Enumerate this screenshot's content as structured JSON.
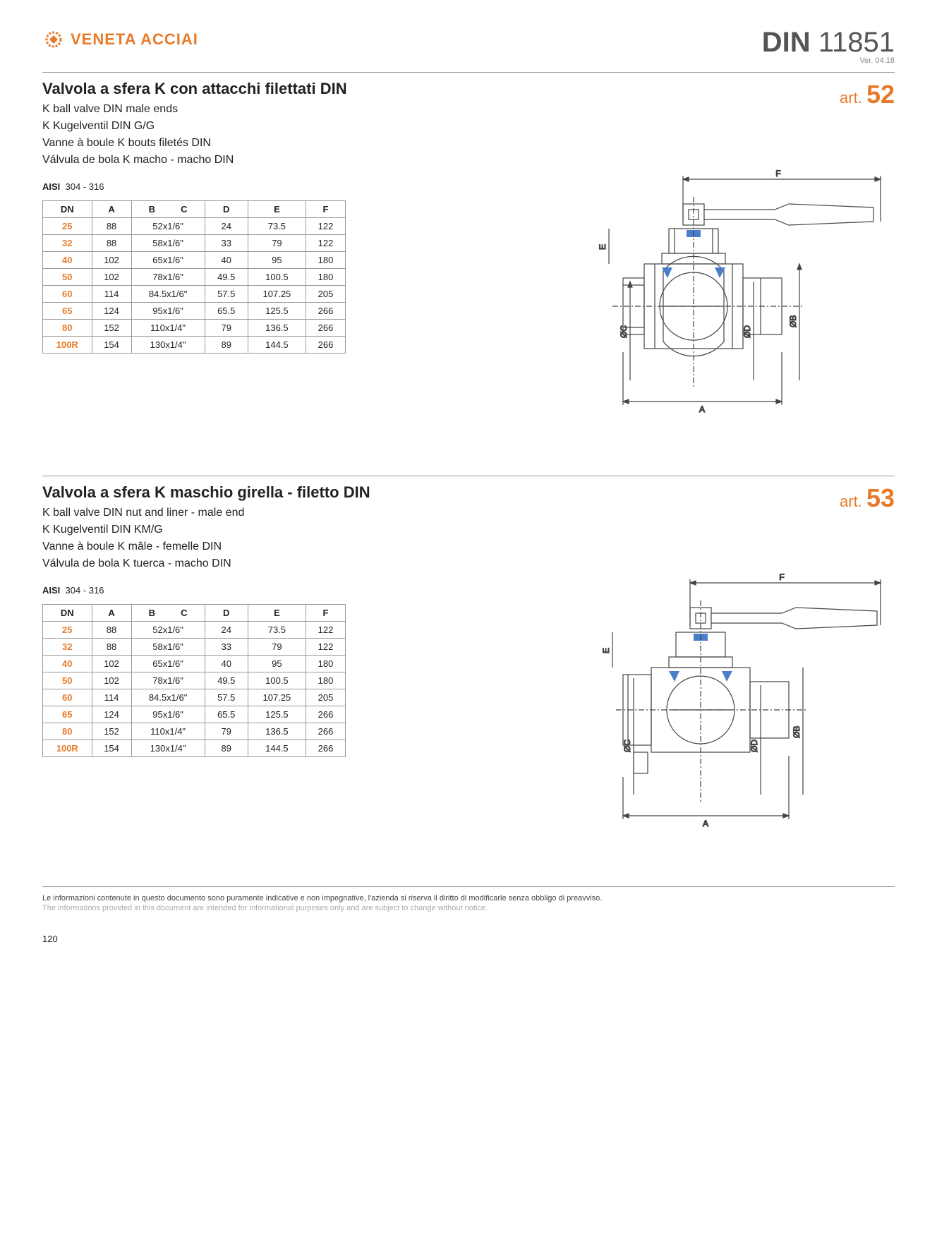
{
  "brand": "VENETA ACCIAI",
  "din": {
    "label_bold": "DIN",
    "number": "11851",
    "version": "Ver. 04.18"
  },
  "section1": {
    "art_prefix": "art.",
    "art_num": "52",
    "title": "Valvola a sfera K con attacchi filettati DIN",
    "subs": [
      "K ball valve DIN male ends",
      "K  Kugelventil DIN G/G",
      "Vanne à boule K bouts filetés DIN",
      "Válvula de bola K macho - macho DIN"
    ],
    "aisi_label": "AISI",
    "aisi_val": "304 - 316",
    "headers": [
      "DN",
      "A",
      "B          C",
      "D",
      "E",
      "F"
    ],
    "rows": [
      [
        "25",
        "88",
        "52x1/6\"",
        "24",
        "73.5",
        "122"
      ],
      [
        "32",
        "88",
        "58x1/6\"",
        "33",
        "79",
        "122"
      ],
      [
        "40",
        "102",
        "65x1/6\"",
        "40",
        "95",
        "180"
      ],
      [
        "50",
        "102",
        "78x1/6\"",
        "49.5",
        "100.5",
        "180"
      ],
      [
        "60",
        "114",
        "84.5x1/6\"",
        "57.5",
        "107.25",
        "205"
      ],
      [
        "65",
        "124",
        "95x1/6\"",
        "65.5",
        "125.5",
        "266"
      ],
      [
        "80",
        "152",
        "110x1/4\"",
        "79",
        "136.5",
        "266"
      ],
      [
        "100R",
        "154",
        "130x1/4\"",
        "89",
        "144.5",
        "266"
      ]
    ],
    "dims": {
      "F": "F",
      "E": "E",
      "C": "ØC",
      "D": "ØD",
      "B": "ØB",
      "A": "A"
    }
  },
  "section2": {
    "art_prefix": "art.",
    "art_num": "53",
    "title": "Valvola a sfera K maschio girella - filetto DIN",
    "subs": [
      "K ball valve DIN nut and liner - male end",
      "K Kugelventil DIN KM/G",
      "Vanne à boule K mâle - femelle DIN",
      "Válvula de bola K tuerca  - macho DIN"
    ],
    "aisi_label": "AISI",
    "aisi_val": "304 - 316",
    "headers": [
      "DN",
      "A",
      "B          C",
      "D",
      "E",
      "F"
    ],
    "rows": [
      [
        "25",
        "88",
        "52x1/6\"",
        "24",
        "73.5",
        "122"
      ],
      [
        "32",
        "88",
        "58x1/6\"",
        "33",
        "79",
        "122"
      ],
      [
        "40",
        "102",
        "65x1/6\"",
        "40",
        "95",
        "180"
      ],
      [
        "50",
        "102",
        "78x1/6\"",
        "49.5",
        "100.5",
        "180"
      ],
      [
        "60",
        "114",
        "84.5x1/6\"",
        "57.5",
        "107.25",
        "205"
      ],
      [
        "65",
        "124",
        "95x1/6\"",
        "65.5",
        "125.5",
        "266"
      ],
      [
        "80",
        "152",
        "110x1/4\"",
        "79",
        "136.5",
        "266"
      ],
      [
        "100R",
        "154",
        "130x1/4\"",
        "89",
        "144.5",
        "266"
      ]
    ],
    "dims": {
      "F": "F",
      "E": "E",
      "C": "ØC",
      "D": "ØD",
      "B": "ØB",
      "A": "A"
    }
  },
  "footer": {
    "line1": "Le informazioni contenute in questo documento sono puramente indicative e non impegnative, l'azienda si riserva il diritto di modificarle senza obbligo di preavviso.",
    "line2": "The informations provided in this document are intended for informational purposes only and are subject to change without notice.",
    "page": "120"
  },
  "colors": {
    "accent": "#e87b2a",
    "line": "#444",
    "blue": "#4a7ec8"
  }
}
